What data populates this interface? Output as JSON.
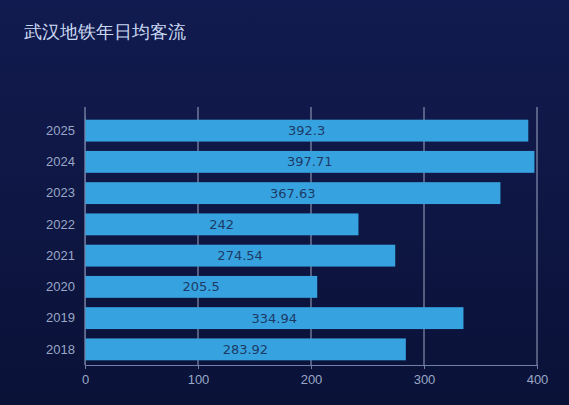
{
  "chart_data": {
    "type": "bar",
    "title": "武汉地铁年日均客流",
    "orientation": "horizontal",
    "categories": [
      "2025",
      "2024",
      "2023",
      "2022",
      "2021",
      "2020",
      "2019",
      "2018"
    ],
    "values": [
      392.3,
      397.71,
      367.63,
      242,
      274.54,
      205.5,
      334.94,
      283.92
    ],
    "color": "#36a3e0",
    "xlim": [
      0,
      400
    ],
    "xticks": [
      0,
      100,
      200,
      300,
      400
    ],
    "grid": true,
    "data_labels": true
  }
}
